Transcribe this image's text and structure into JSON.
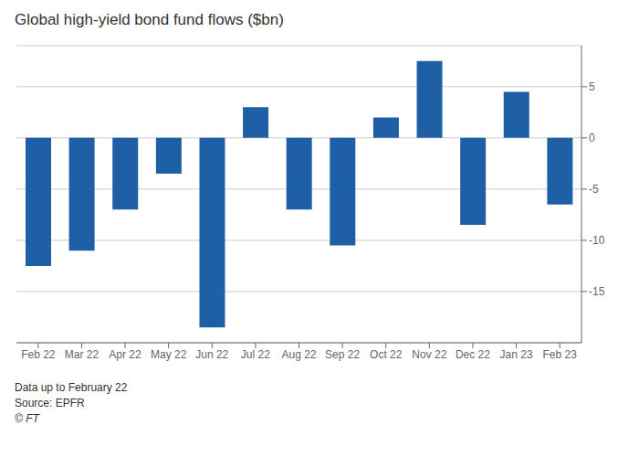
{
  "chart_data": {
    "type": "bar",
    "title": "Global high-yield bond fund flows ($bn)",
    "categories": [
      "Feb 22",
      "Mar 22",
      "Apr 22",
      "May 22",
      "Jun 22",
      "Jul 22",
      "Aug 22",
      "Sep 22",
      "Oct 22",
      "Nov 22",
      "Dec 22",
      "Jan 23",
      "Feb 23"
    ],
    "values": [
      -12.5,
      -11.0,
      -7.0,
      -3.5,
      -18.5,
      3.0,
      -7.0,
      -10.5,
      2.0,
      7.5,
      -8.5,
      4.5,
      -6.5
    ],
    "color": "#1f5fa6",
    "ylim": [
      -20,
      9
    ],
    "yticks": [
      -15,
      -10,
      -5,
      0,
      5
    ],
    "grid": true,
    "annotations": [
      "Data up to February 22",
      "Source: EPFR",
      "© FT"
    ]
  }
}
